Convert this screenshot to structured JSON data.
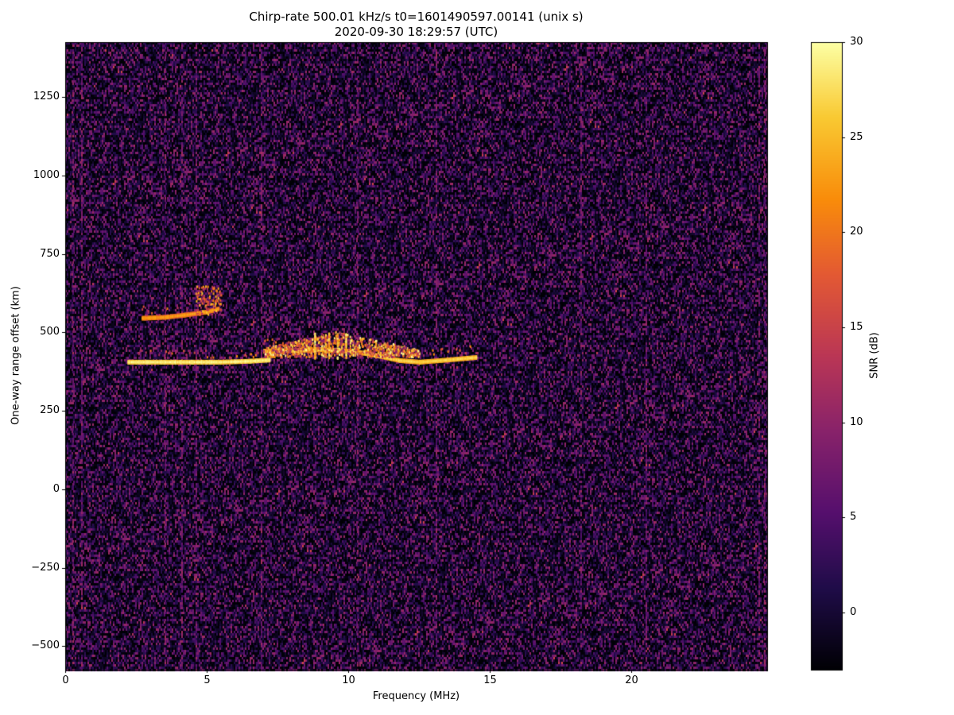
{
  "figure": {
    "title_line1": "Chirp-rate 500.01 kHz/s t0=1601490597.00141 (unix s)",
    "title_line2": "2020-09-30 18:29:57 (UTC)"
  },
  "chart_data": {
    "type": "heatmap",
    "title": "Chirp-rate 500.01 kHz/s t0=1601490597.00141 (unix s) 2020-09-30 18:29:57 (UTC)",
    "xlabel": "Frequency (MHz)",
    "ylabel": "One-way range offset (km)",
    "xlim": [
      0,
      24.8
    ],
    "ylim": [
      -575,
      1425
    ],
    "xticks": [
      0,
      5,
      10,
      15,
      20
    ],
    "xtick_labels": [
      "0",
      "5",
      "10",
      "15",
      "20"
    ],
    "yticks": [
      -500,
      -250,
      0,
      250,
      500,
      750,
      1000,
      1250
    ],
    "ytick_labels": [
      "−500",
      "−250",
      "0",
      "250",
      "500",
      "750",
      "1000",
      "1250"
    ],
    "colorbar": {
      "label": "SNR (dB)",
      "colormap": "inferno",
      "range": [
        -3,
        30
      ],
      "ticks": [
        0,
        5,
        10,
        15,
        20,
        25,
        30
      ],
      "tick_labels": [
        "0",
        "5",
        "10",
        "15",
        "20",
        "25",
        "30"
      ]
    },
    "echo_traces": [
      {
        "points": [
          [
            2.2,
            405
          ],
          [
            3.5,
            405
          ],
          [
            4.5,
            405
          ],
          [
            5.5,
            405
          ],
          [
            6.5,
            408
          ],
          [
            7.2,
            412
          ]
        ],
        "snr_db": 30
      },
      {
        "points": [
          [
            2.7,
            545
          ],
          [
            3.5,
            548
          ],
          [
            4.2,
            555
          ],
          [
            5.0,
            565
          ],
          [
            5.4,
            575
          ]
        ],
        "snr_db": 24
      },
      {
        "points": [
          [
            7.0,
            440
          ],
          [
            8.0,
            442
          ],
          [
            9.0,
            445
          ],
          [
            10.0,
            440
          ],
          [
            10.8,
            430
          ],
          [
            11.8,
            410
          ],
          [
            12.5,
            405
          ],
          [
            13.5,
            412
          ],
          [
            14.5,
            420
          ]
        ],
        "snr_db": 28
      }
    ],
    "noise_floor_snr_db": [
      -3,
      12
    ]
  }
}
